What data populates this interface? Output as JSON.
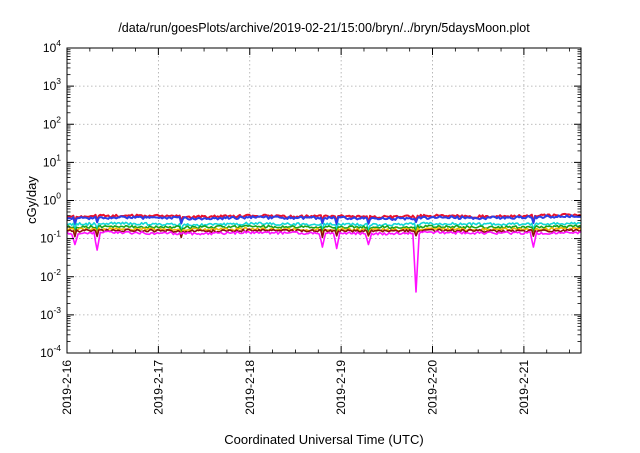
{
  "chart_data": {
    "type": "line",
    "title": "/data/run/goesPlots/archive/2019-02-21/15:00/bryn/../bryn/5daysMoon.plot",
    "xlabel": "Coordinated Universal Time (UTC)",
    "ylabel": "cGy/day",
    "yscale": "log",
    "ylim": [
      0.0001,
      10000
    ],
    "xlim": [
      "2019-02-16 00:00",
      "2019-02-21 15:00"
    ],
    "grid": true,
    "y_ticks": [
      {
        "base": "10",
        "exp": "-4",
        "value": 0.0001
      },
      {
        "base": "10",
        "exp": "-3",
        "value": 0.001
      },
      {
        "base": "10",
        "exp": "-2",
        "value": 0.01
      },
      {
        "base": "10",
        "exp": "-1",
        "value": 0.1
      },
      {
        "base": "10",
        "exp": "0",
        "value": 1
      },
      {
        "base": "10",
        "exp": "1",
        "value": 10
      },
      {
        "base": "10",
        "exp": "2",
        "value": 100
      },
      {
        "base": "10",
        "exp": "3",
        "value": 1000
      },
      {
        "base": "10",
        "exp": "4",
        "value": 10000
      }
    ],
    "x_ticks": [
      {
        "label": "2019-2-16",
        "value": "2019-02-16 00:00"
      },
      {
        "label": "2019-2-17",
        "value": "2019-02-17 00:00"
      },
      {
        "label": "2019-2-18",
        "value": "2019-02-18 00:00"
      },
      {
        "label": "2019-2-19",
        "value": "2019-02-19 00:00"
      },
      {
        "label": "2019-2-20",
        "value": "2019-02-20 00:00"
      },
      {
        "label": "2019-2-21",
        "value": "2019-02-21 00:00"
      }
    ],
    "series": [
      {
        "color": "#e8112d",
        "base": 0.38,
        "x": [
          "2019-02-16 00:00",
          "2019-02-16 12:00",
          "2019-02-17 00:00",
          "2019-02-17 12:00",
          "2019-02-18 00:00",
          "2019-02-18 12:00",
          "2019-02-19 00:00",
          "2019-02-19 12:00",
          "2019-02-20 00:00",
          "2019-02-20 12:00",
          "2019-02-21 00:00",
          "2019-02-21 15:00"
        ],
        "values": [
          0.38,
          0.4,
          0.39,
          0.37,
          0.4,
          0.38,
          0.39,
          0.37,
          0.4,
          0.38,
          0.39,
          0.42
        ]
      },
      {
        "color": "#2b3ee6",
        "base": 0.35,
        "x": [
          "2019-02-16 00:00",
          "2019-02-16 12:00",
          "2019-02-17 00:00",
          "2019-02-17 12:00",
          "2019-02-18 00:00",
          "2019-02-18 12:00",
          "2019-02-19 00:00",
          "2019-02-19 12:00",
          "2019-02-20 00:00",
          "2019-02-20 12:00",
          "2019-02-21 00:00",
          "2019-02-21 15:00"
        ],
        "values": [
          0.34,
          0.36,
          0.35,
          0.34,
          0.36,
          0.35,
          0.35,
          0.33,
          0.36,
          0.35,
          0.36,
          0.4
        ]
      },
      {
        "color": "#12d6d6",
        "base": 0.24,
        "x": [
          "2019-02-16 00:00",
          "2019-02-16 12:00",
          "2019-02-17 00:00",
          "2019-02-17 12:00",
          "2019-02-18 00:00",
          "2019-02-18 12:00",
          "2019-02-19 00:00",
          "2019-02-19 12:00",
          "2019-02-20 00:00",
          "2019-02-20 12:00",
          "2019-02-21 00:00",
          "2019-02-21 15:00"
        ],
        "values": [
          0.24,
          0.25,
          0.24,
          0.23,
          0.25,
          0.24,
          0.24,
          0.23,
          0.25,
          0.24,
          0.24,
          0.25
        ]
      },
      {
        "color": "#1aa31a",
        "base": 0.2,
        "x": [
          "2019-02-16 00:00",
          "2019-02-16 12:00",
          "2019-02-17 00:00",
          "2019-02-17 12:00",
          "2019-02-18 00:00",
          "2019-02-18 12:00",
          "2019-02-19 00:00",
          "2019-02-19 12:00",
          "2019-02-20 00:00",
          "2019-02-20 12:00",
          "2019-02-21 00:00",
          "2019-02-21 15:00"
        ],
        "values": [
          0.2,
          0.21,
          0.2,
          0.2,
          0.21,
          0.2,
          0.2,
          0.2,
          0.21,
          0.2,
          0.2,
          0.21
        ]
      },
      {
        "color": "#f2b705",
        "base": 0.175,
        "x": [
          "2019-02-16 00:00",
          "2019-02-16 12:00",
          "2019-02-17 00:00",
          "2019-02-17 12:00",
          "2019-02-18 00:00",
          "2019-02-18 12:00",
          "2019-02-19 00:00",
          "2019-02-19 12:00",
          "2019-02-20 00:00",
          "2019-02-20 12:00",
          "2019-02-21 00:00",
          "2019-02-21 15:00"
        ],
        "values": [
          0.175,
          0.18,
          0.175,
          0.17,
          0.18,
          0.175,
          0.175,
          0.17,
          0.18,
          0.175,
          0.175,
          0.18
        ]
      },
      {
        "color": "#8a1010",
        "base": 0.16,
        "x": [
          "2019-02-16 00:00",
          "2019-02-16 12:00",
          "2019-02-17 00:00",
          "2019-02-17 12:00",
          "2019-02-18 00:00",
          "2019-02-18 12:00",
          "2019-02-19 00:00",
          "2019-02-19 12:00",
          "2019-02-20 00:00",
          "2019-02-20 12:00",
          "2019-02-21 00:00",
          "2019-02-21 15:00"
        ],
        "values": [
          0.16,
          0.165,
          0.16,
          0.155,
          0.165,
          0.16,
          0.16,
          0.155,
          0.165,
          0.16,
          0.16,
          0.165
        ]
      },
      {
        "color": "#ff10ff",
        "base": 0.14,
        "x": [
          "2019-02-16 00:00",
          "2019-02-16 12:00",
          "2019-02-17 00:00",
          "2019-02-17 12:00",
          "2019-02-18 00:00",
          "2019-02-18 12:00",
          "2019-02-19 00:00",
          "2019-02-19 12:00",
          "2019-02-20 00:00",
          "2019-02-20 12:00",
          "2019-02-21 00:00",
          "2019-02-21 15:00"
        ],
        "values": [
          0.14,
          0.145,
          0.14,
          0.135,
          0.145,
          0.14,
          0.14,
          0.135,
          0.145,
          0.14,
          0.14,
          0.145
        ],
        "dips": [
          {
            "x": "2019-02-16 02:00",
            "value": 0.07
          },
          {
            "x": "2019-02-16 08:00",
            "value": 0.05
          },
          {
            "x": "2019-02-18 19:00",
            "value": 0.06
          },
          {
            "x": "2019-02-18 23:00",
            "value": 0.055
          },
          {
            "x": "2019-02-19 07:00",
            "value": 0.07
          },
          {
            "x": "2019-02-19 19:30",
            "value": 0.004
          },
          {
            "x": "2019-02-21 02:30",
            "value": 0.06
          }
        ]
      }
    ]
  }
}
